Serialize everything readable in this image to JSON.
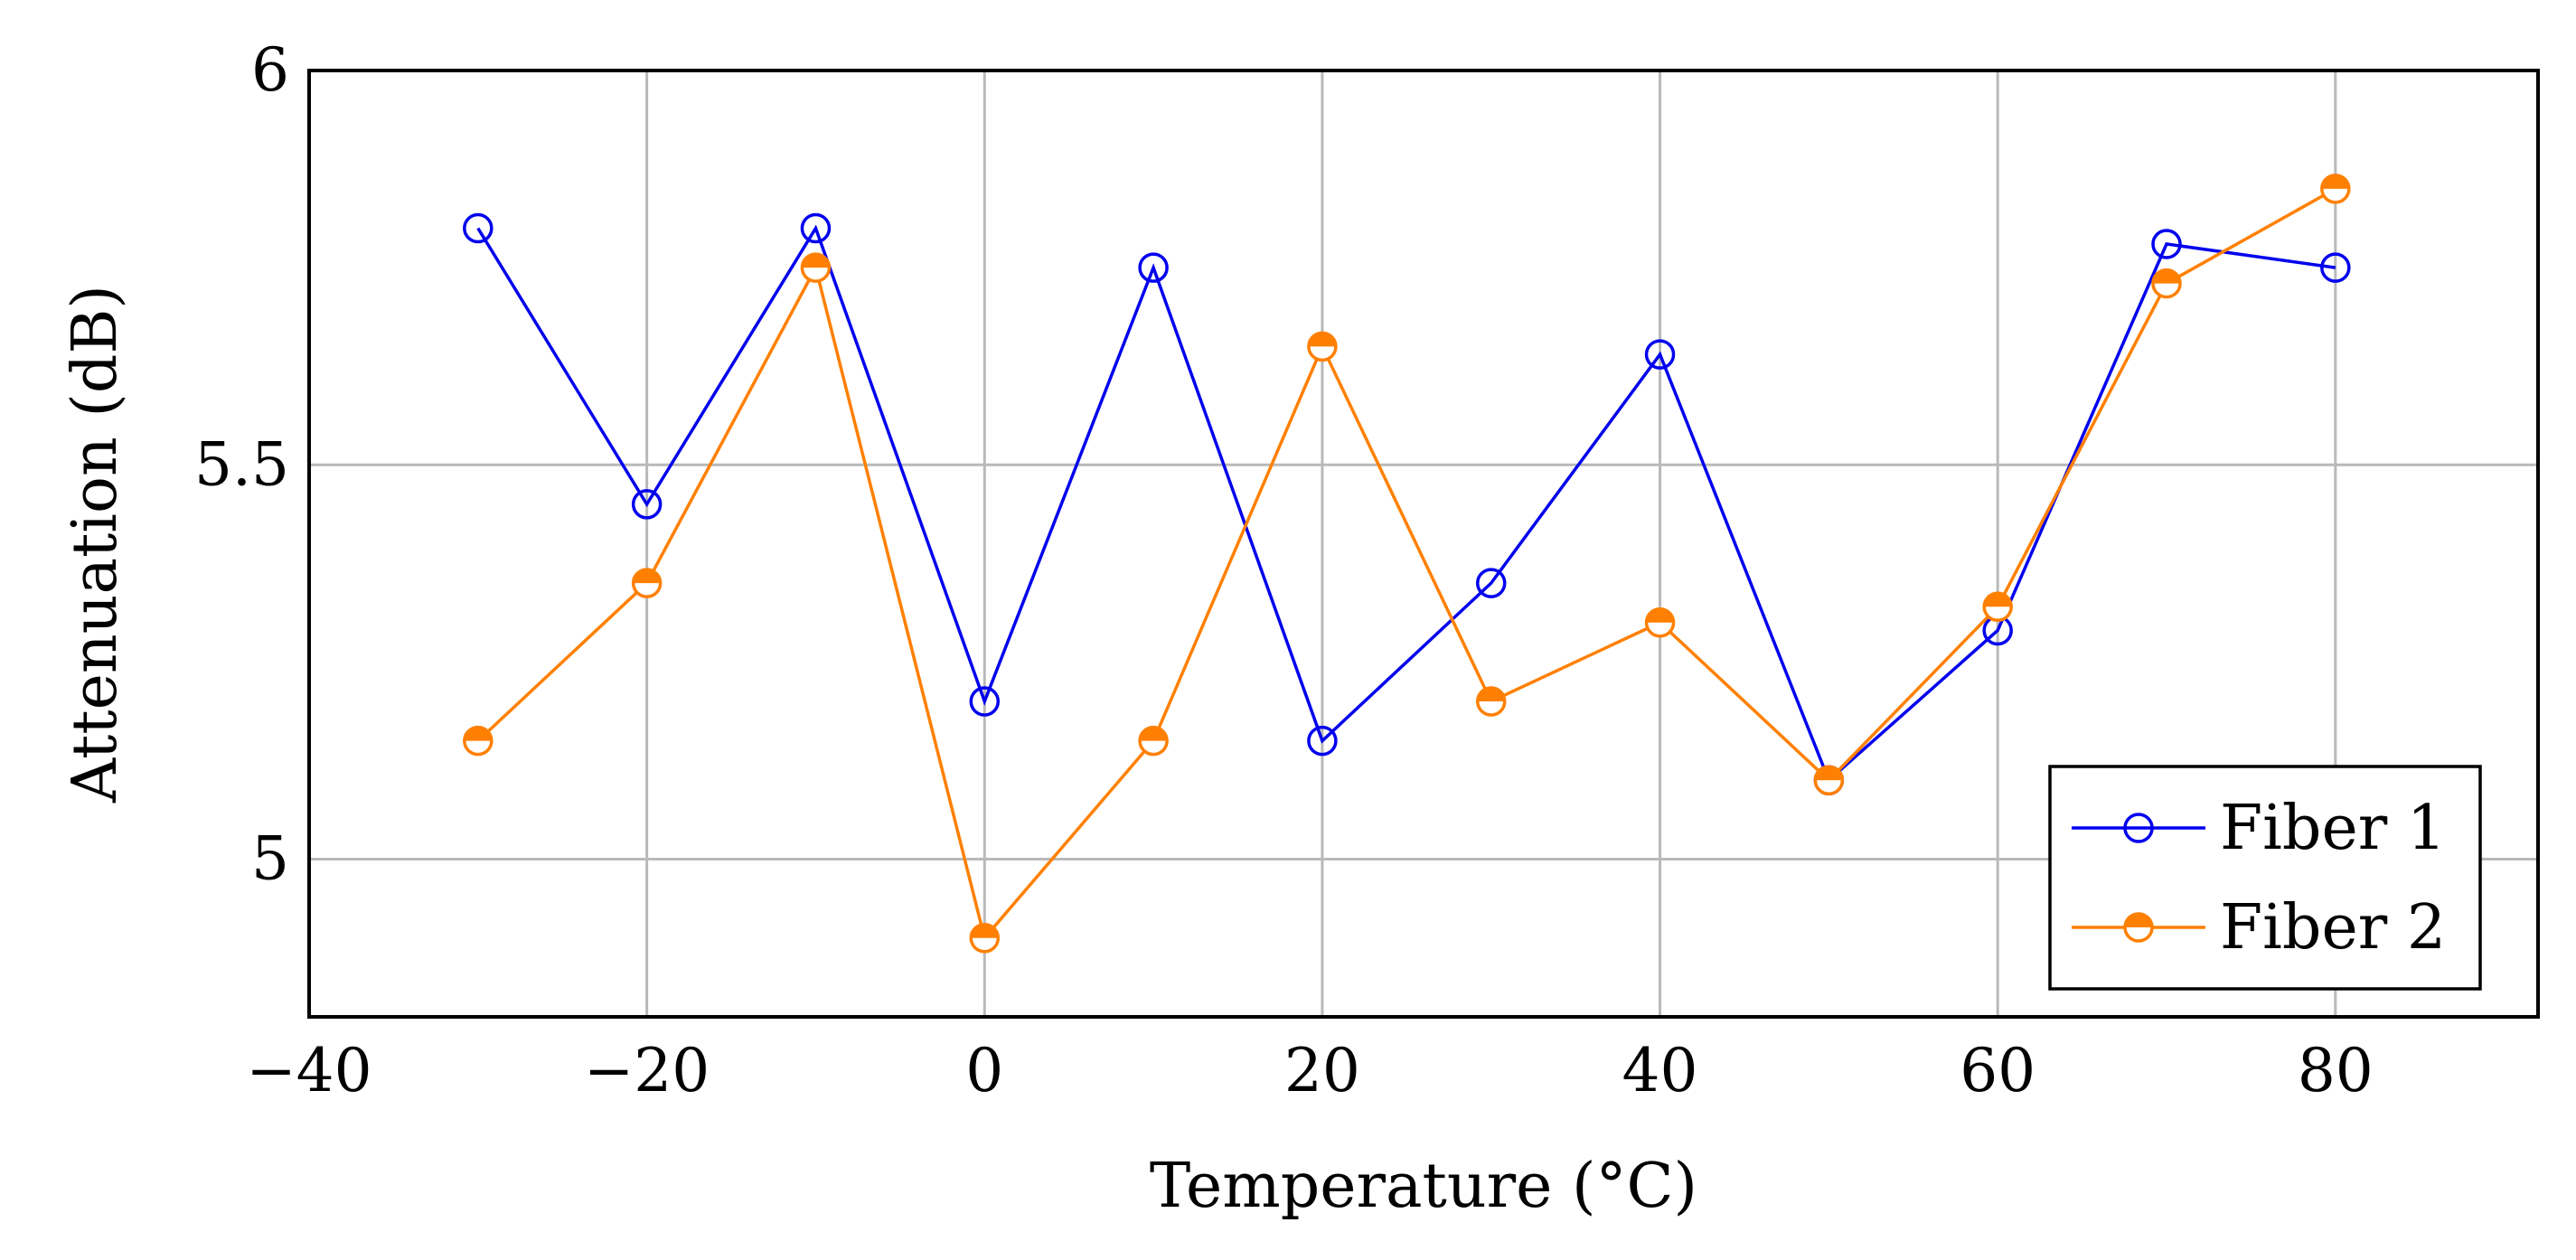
{
  "chart_data": {
    "type": "line",
    "title": "",
    "xlabel": "Temperature (°C)",
    "ylabel": "Attenuation (dB)",
    "xlim": [
      -40,
      92
    ],
    "ylim": [
      4.8,
      6.0
    ],
    "xticks": [
      -40,
      -20,
      0,
      20,
      40,
      60,
      80
    ],
    "xtick_labels": [
      "−40",
      "−20",
      "0",
      "20",
      "40",
      "60",
      "80"
    ],
    "yticks": [
      5,
      5.5,
      6
    ],
    "ytick_labels": [
      "5",
      "5.5",
      "6"
    ],
    "grid": true,
    "legend_position": "bottom-right",
    "x": [
      -30,
      -20,
      -10,
      0,
      10,
      20,
      30,
      40,
      50,
      60,
      70,
      80
    ],
    "series": [
      {
        "name": "Fiber 1",
        "color": "#0000ee",
        "marker": "open-circle",
        "values": [
          5.8,
          5.45,
          5.8,
          5.2,
          5.75,
          5.15,
          5.35,
          5.64,
          5.1,
          5.29,
          5.78,
          5.75
        ]
      },
      {
        "name": "Fiber 2",
        "color": "#ff8000",
        "marker": "half-filled-circle",
        "values": [
          5.15,
          5.35,
          5.75,
          4.9,
          5.15,
          5.65,
          5.2,
          5.3,
          5.1,
          5.32,
          5.73,
          5.85
        ]
      }
    ]
  }
}
